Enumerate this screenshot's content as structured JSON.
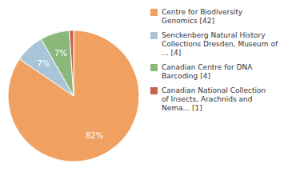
{
  "chart_data": {
    "type": "pie",
    "categories": [
      "Centre for Biodiversity\nGenomics [42]",
      "Senckenberg Natural History\nCollections Dresden, Museum of\n... [4]",
      "Canadian Centre for DNA\nBarcoding [4]",
      "Canadian National Collection\nof Insects, Arachnids and\nNema... [1]"
    ],
    "values": [
      82,
      7,
      7,
      1
    ],
    "value_labels": [
      "82%",
      "7%",
      "7%",
      null
    ],
    "colors": [
      "#f0a060",
      "#a8c4d8",
      "#8ab87a",
      "#c86050"
    ],
    "data_labels": true,
    "legend": "right"
  }
}
